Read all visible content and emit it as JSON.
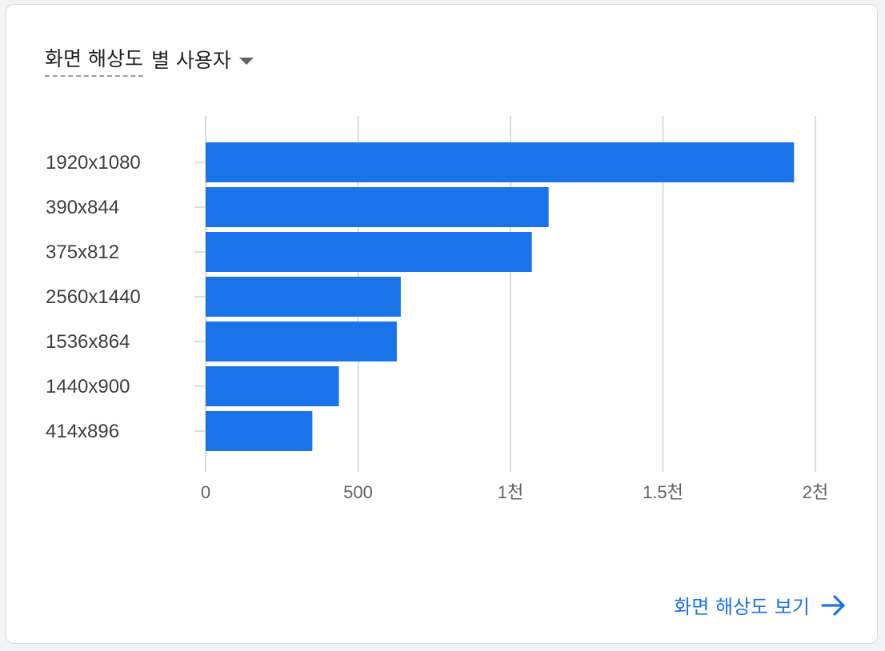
{
  "card": {
    "metric_label": "화면 해상도",
    "dimension_label": "별 사용자",
    "dropdown_icon": "caret-down-icon",
    "footer_link_label": "화면 해상도 보기",
    "footer_icon": "arrow-right-icon"
  },
  "colors": {
    "bar": "#1a73e8",
    "grid": "#dadce0",
    "link": "#1a73e8"
  },
  "chart_data": {
    "type": "bar",
    "orientation": "horizontal",
    "categories": [
      "1920x1080",
      "390x844",
      "375x812",
      "2560x1440",
      "1536x864",
      "1440x900",
      "414x896"
    ],
    "values": [
      1930,
      1125,
      1070,
      640,
      627,
      437,
      350
    ],
    "xlim": [
      0,
      2000
    ],
    "x_ticks": [
      0,
      500,
      1000,
      1500,
      2000
    ],
    "x_tick_labels": [
      "0",
      "500",
      "1천",
      "1.5천",
      "2천"
    ],
    "grid": true,
    "title": "",
    "xlabel": "",
    "ylabel": ""
  }
}
